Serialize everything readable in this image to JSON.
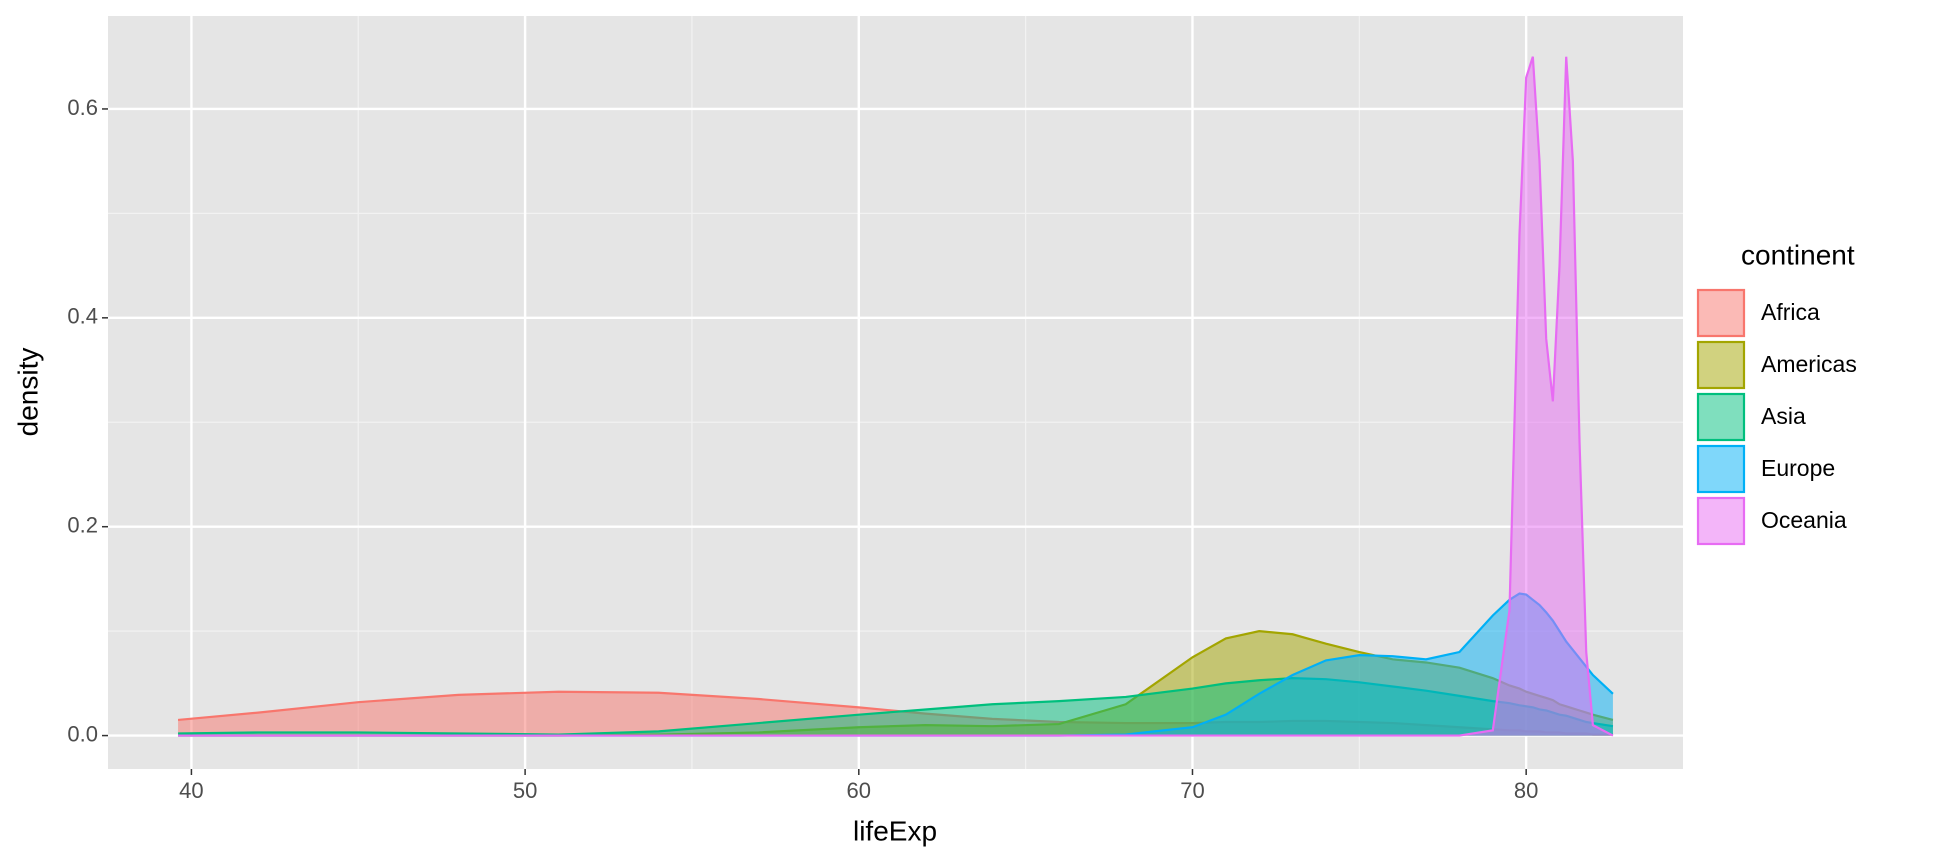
{
  "chart_data": {
    "type": "density",
    "x_label": "lifeExp",
    "y_label": "density",
    "legend_title": "continent",
    "legend": "right",
    "xlim": [
      37.5,
      84.7
    ],
    "ylim": [
      -0.032,
      0.689
    ],
    "xticks": [
      40,
      50,
      60,
      70,
      80
    ],
    "yticks": [
      {
        "value": 0,
        "label": "0.0"
      },
      0.2,
      0.4,
      0.6
    ],
    "grid": true,
    "minor_grid": true,
    "x": [
      39.6,
      42,
      45,
      48,
      51,
      54,
      57,
      60,
      62,
      64,
      66,
      68,
      70,
      71,
      72,
      73,
      74,
      75,
      76,
      77,
      78,
      79,
      79.5,
      79.8,
      80,
      80.2,
      80.4,
      80.6,
      80.8,
      81,
      81.2,
      81.4,
      81.6,
      81.8,
      82,
      82.6
    ],
    "series": [
      {
        "name": "Africa",
        "color": "#F8766D",
        "values": [
          0.015,
          0.022,
          0.032,
          0.039,
          0.042,
          0.041,
          0.035,
          0.027,
          0.021,
          0.016,
          0.013,
          0.012,
          0.012,
          0.013,
          0.013,
          0.014,
          0.014,
          0.013,
          0.012,
          0.01,
          0.008,
          0.006,
          0.005,
          0.005,
          0.004,
          0.004,
          0.004,
          0.003,
          0.003,
          0.003,
          0.002,
          0.002,
          0.002,
          0.002,
          0.001,
          0.001
        ]
      },
      {
        "name": "Americas",
        "color": "#A3A500",
        "values": [
          0,
          0,
          0,
          0,
          0,
          0.001,
          0.003,
          0.008,
          0.01,
          0.009,
          0.011,
          0.03,
          0.075,
          0.093,
          0.1,
          0.097,
          0.088,
          0.08,
          0.073,
          0.07,
          0.065,
          0.055,
          0.048,
          0.045,
          0.042,
          0.04,
          0.038,
          0.036,
          0.034,
          0.03,
          0.028,
          0.026,
          0.024,
          0.022,
          0.02,
          0.015
        ]
      },
      {
        "name": "Asia",
        "color": "#00BF7D",
        "values": [
          0.002,
          0.003,
          0.003,
          0.002,
          0.001,
          0.004,
          0.012,
          0.02,
          0.025,
          0.03,
          0.033,
          0.037,
          0.045,
          0.05,
          0.053,
          0.055,
          0.054,
          0.051,
          0.047,
          0.043,
          0.038,
          0.033,
          0.031,
          0.029,
          0.028,
          0.027,
          0.025,
          0.024,
          0.022,
          0.02,
          0.019,
          0.017,
          0.015,
          0.013,
          0.012,
          0.009
        ]
      },
      {
        "name": "Europe",
        "color": "#00B0F6",
        "values": [
          0,
          0,
          0,
          0,
          0,
          0,
          0,
          0,
          0,
          0,
          0,
          0.001,
          0.008,
          0.02,
          0.04,
          0.058,
          0.072,
          0.077,
          0.076,
          0.073,
          0.08,
          0.115,
          0.13,
          0.136,
          0.135,
          0.13,
          0.125,
          0.118,
          0.11,
          0.1,
          0.09,
          0.082,
          0.074,
          0.066,
          0.058,
          0.04
        ]
      },
      {
        "name": "Oceania",
        "color": "#E76BF3",
        "values": [
          0,
          0,
          0,
          0,
          0,
          0,
          0,
          0,
          0,
          0,
          0,
          0,
          0,
          0,
          0,
          0,
          0,
          0,
          0,
          0,
          0,
          0.005,
          0.12,
          0.48,
          0.63,
          0.65,
          0.55,
          0.38,
          0.32,
          0.45,
          0.65,
          0.55,
          0.28,
          0.08,
          0.01,
          0
        ]
      }
    ]
  }
}
